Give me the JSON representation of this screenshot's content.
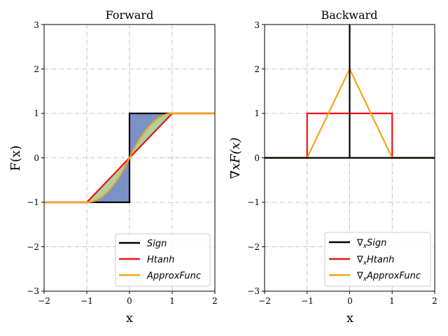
{
  "chart_data": [
    {
      "type": "line",
      "title": "Forward",
      "xlabel": "x",
      "ylabel": "F(x)",
      "xlim": [
        -2,
        2
      ],
      "ylim": [
        -3,
        3
      ],
      "xticks": [
        "−2",
        "−1",
        "0",
        "1",
        "2"
      ],
      "yticks": [
        "−3",
        "−2",
        "−1",
        "0",
        "1",
        "2",
        "3"
      ],
      "grid": true,
      "legend_position": "bottom-right",
      "series": [
        {
          "name": "Sign",
          "color": "#000000",
          "x": [
            -2,
            0,
            0,
            2
          ],
          "y": [
            -1,
            -1,
            1,
            1
          ]
        },
        {
          "name": "Htanh",
          "color": "#ee1111",
          "x": [
            -2,
            -1,
            1,
            2
          ],
          "y": [
            -1,
            -1,
            1,
            1
          ]
        },
        {
          "name": "ApproxFunc",
          "color": "#f5a31a",
          "function": "approx_sign",
          "x_range": [
            -2,
            2
          ]
        }
      ],
      "fills": [
        {
          "between": [
            "Sign",
            "Htanh"
          ],
          "color": "#7b92c8"
        },
        {
          "between": [
            "Htanh",
            "ApproxFunc"
          ],
          "color": "#a9d3a3"
        }
      ]
    },
    {
      "type": "line",
      "title": "Backward",
      "xlabel": "x",
      "ylabel": "∇xF(x)",
      "xlim": [
        -2,
        2
      ],
      "ylim": [
        -3,
        3
      ],
      "xticks": [
        "−2",
        "−1",
        "0",
        "1",
        "2"
      ],
      "yticks": [
        "−3",
        "−2",
        "−1",
        "0",
        "1",
        "2",
        "3"
      ],
      "grid": true,
      "legend_position": "bottom-right",
      "series": [
        {
          "name": "∇xSign",
          "color": "#000000",
          "x": [
            -2,
            0,
            0,
            0,
            2
          ],
          "y": [
            0,
            0,
            3,
            0,
            0
          ]
        },
        {
          "name": "∇xHtanh",
          "color": "#ee1111",
          "x": [
            -2,
            -1,
            -1,
            1,
            1,
            2
          ],
          "y": [
            0,
            0,
            1,
            1,
            0,
            0
          ]
        },
        {
          "name": "∇xApproxFunc",
          "color": "#f5a31a",
          "x": [
            -2,
            -1,
            0,
            1,
            2
          ],
          "y": [
            0,
            0,
            2,
            0,
            0
          ]
        }
      ]
    }
  ],
  "legend_labels": {
    "left": [
      "Sign",
      "Htanh",
      "ApproxFunc"
    ],
    "right_prefix": "∇",
    "right_sub": "x",
    "right": [
      "Sign",
      "Htanh",
      "ApproxFunc"
    ]
  }
}
